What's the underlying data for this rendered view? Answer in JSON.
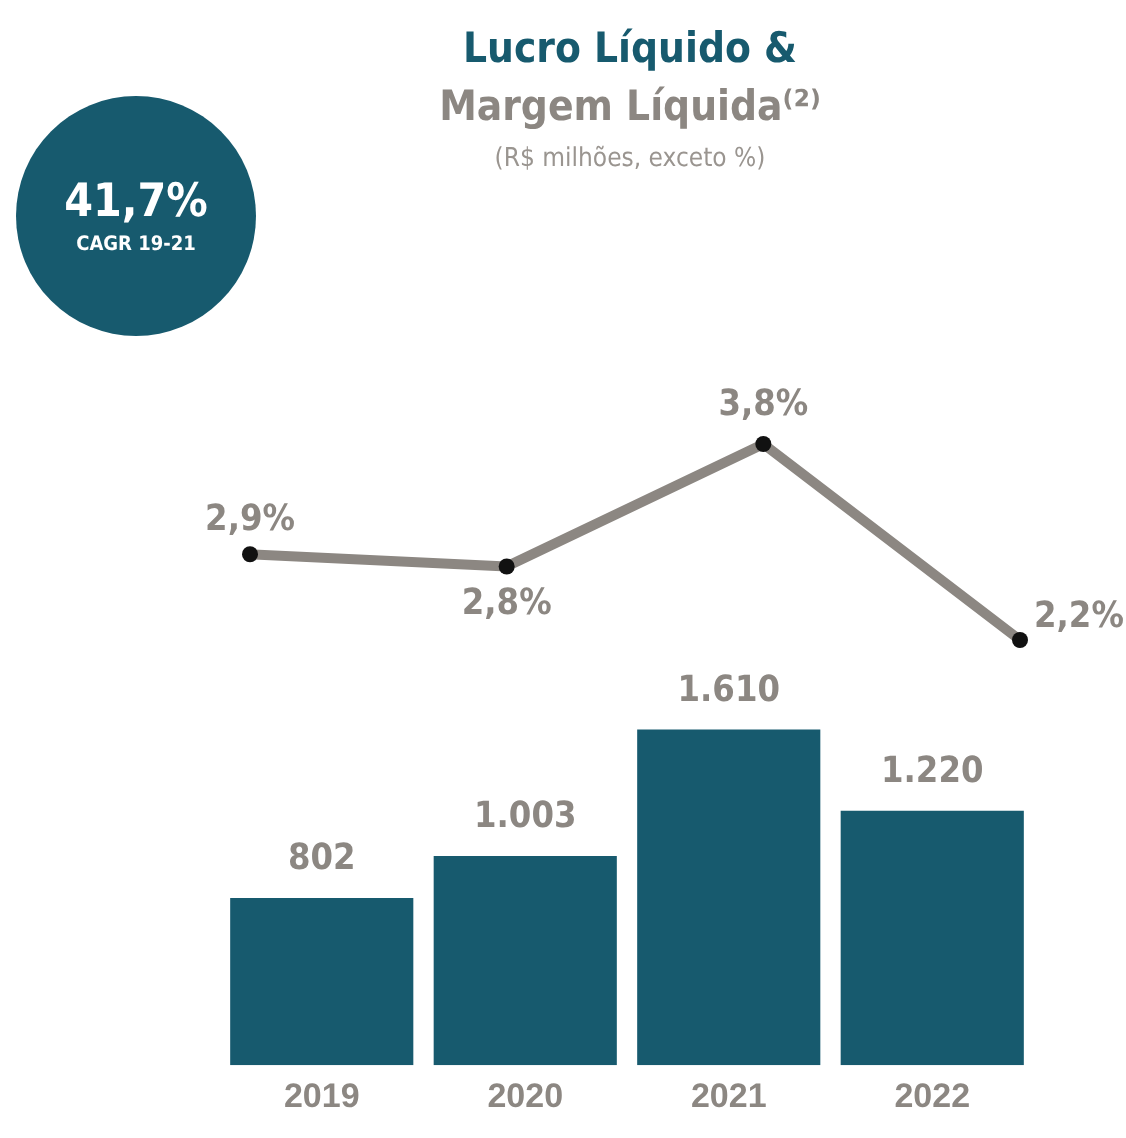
{
  "chart_data": [
    {
      "type": "line",
      "title": "Lucro Líquido & Margem Líquida⁽²⁾",
      "subtitle": "(R$ milhões, exceto %)",
      "annotations": [
        "41,7%",
        "CAGR 19-21"
      ],
      "categories": [
        null,
        null,
        null,
        null
      ],
      "series": [
        {
          "color": "#8c8782",
          "values": [
            2.9,
            2.8,
            3.8,
            2.2
          ],
          "value_labels": [
            "2,9%",
            "2,8%",
            "3,8%",
            "2,2%"
          ]
        }
      ],
      "marker": "circle",
      "tick_labels": false,
      "grid": false,
      "legend": false
    },
    {
      "type": "bar",
      "categories": [
        "2019",
        "2020",
        "2021",
        "2022"
      ],
      "series": [
        {
          "color": "#175a6e",
          "values": [
            802,
            1003,
            1610,
            1220
          ],
          "value_labels": [
            "802",
            "1.003",
            "1.610",
            "1.220"
          ]
        }
      ],
      "tick_labels": "x",
      "grid": false,
      "legend": false
    }
  ]
}
